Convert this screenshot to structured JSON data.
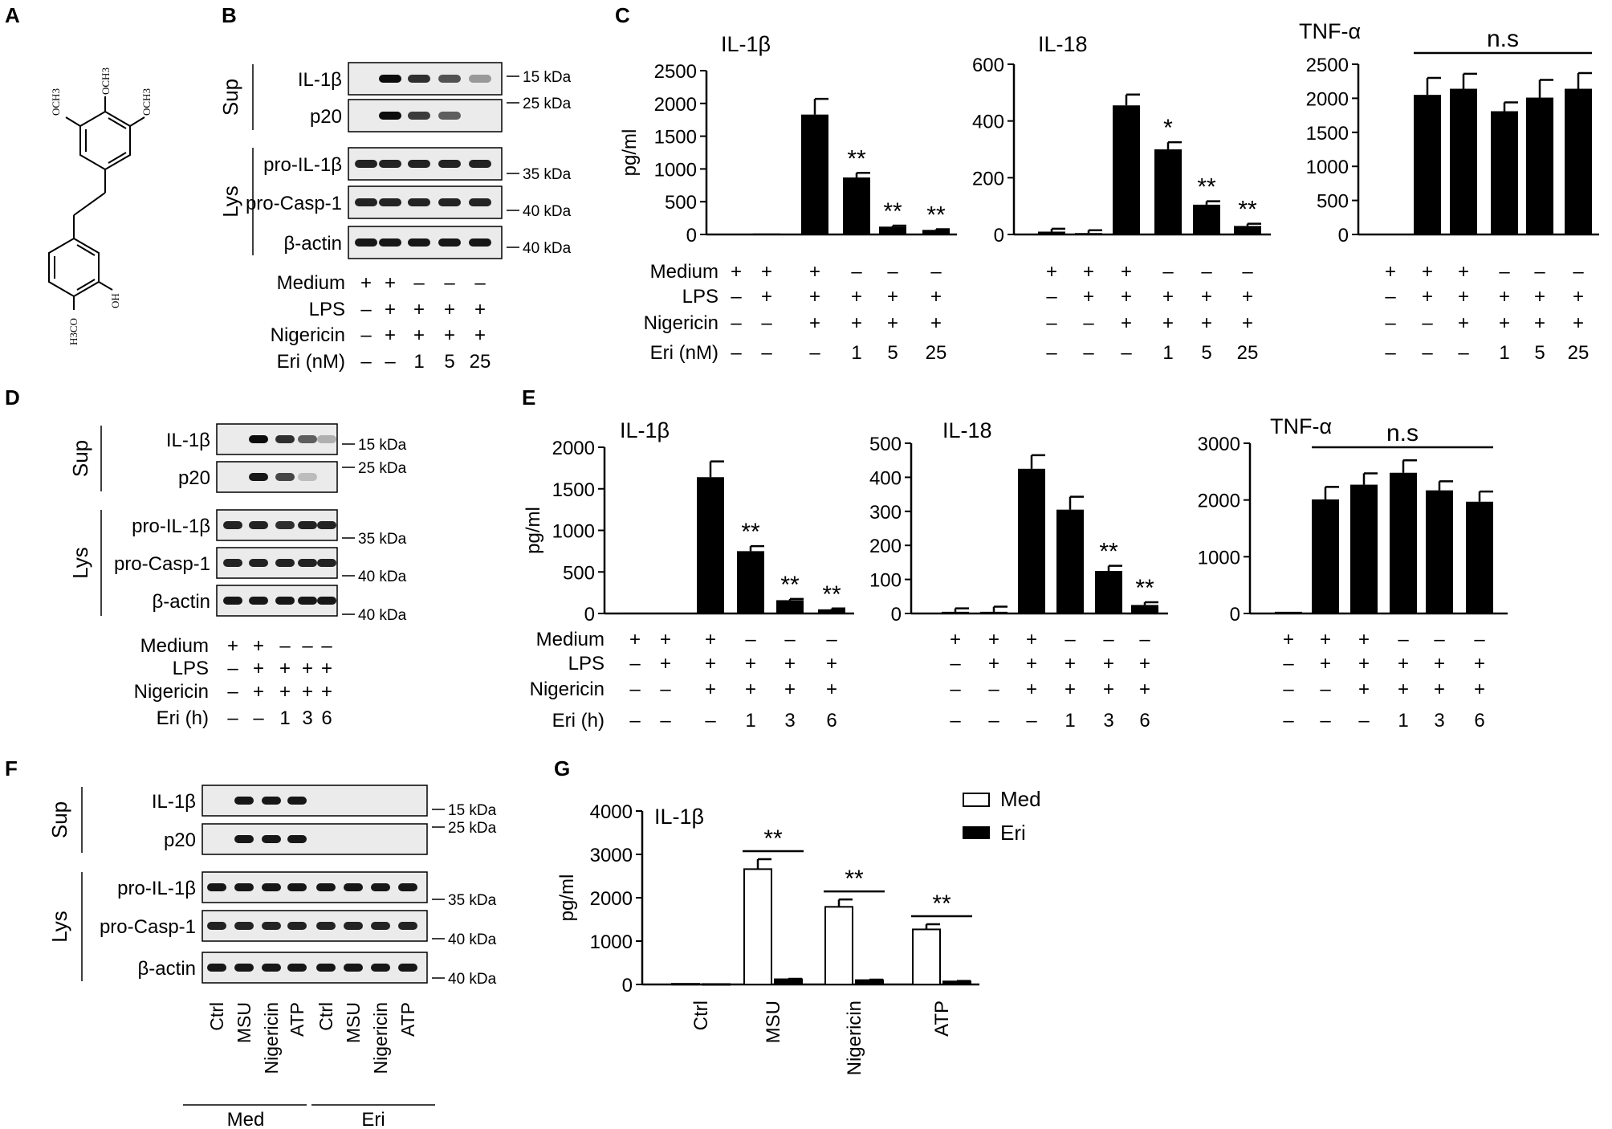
{
  "panel_letters": {
    "A": "A",
    "B": "B",
    "C": "C",
    "D": "D",
    "E": "E",
    "F": "F",
    "G": "G"
  },
  "structure": {
    "groups": [
      "OCH3",
      "OCH3",
      "OCH3",
      "OH",
      "H3CO"
    ]
  },
  "blots": {
    "B": {
      "sections": [
        "Sup",
        "Lys"
      ],
      "rows": [
        "IL-1β",
        "p20",
        "pro-IL-1β",
        "pro-Casp-1",
        "β-actin"
      ],
      "markers": [
        "15 kDa",
        "25 kDa",
        "35 kDa",
        "40 kDa",
        "40 kDa"
      ],
      "conditions": [
        {
          "label": "Medium",
          "values": [
            "+",
            "+",
            "–",
            "–",
            "–"
          ]
        },
        {
          "label": "LPS",
          "values": [
            "–",
            "+",
            "+",
            "+",
            "+"
          ]
        },
        {
          "label": "Nigericin",
          "values": [
            "–",
            "+",
            "+",
            "+",
            "+"
          ]
        },
        {
          "label": "Eri (nM)",
          "values": [
            "–",
            "–",
            "1",
            "5",
            "25"
          ]
        }
      ]
    },
    "D": {
      "sections": [
        "Sup",
        "Lys"
      ],
      "rows": [
        "IL-1β",
        "p20",
        "pro-IL-1β",
        "pro-Casp-1",
        "β-actin"
      ],
      "markers": [
        "15 kDa",
        "25 kDa",
        "35 kDa",
        "40 kDa",
        "40 kDa"
      ],
      "conditions": [
        {
          "label": "Medium",
          "values": [
            "+",
            "+",
            "–",
            "–",
            "–"
          ]
        },
        {
          "label": "LPS",
          "values": [
            "–",
            "+",
            "+",
            "+",
            "+"
          ]
        },
        {
          "label": "Nigericin",
          "values": [
            "–",
            "+",
            "+",
            "+",
            "+"
          ]
        },
        {
          "label": "Eri (h)",
          "values": [
            "–",
            "–",
            "1",
            "3",
            "6"
          ]
        }
      ]
    },
    "F": {
      "sections": [
        "Sup",
        "Lys"
      ],
      "rows": [
        "IL-1β",
        "p20",
        "pro-IL-1β",
        "pro-Casp-1",
        "β-actin"
      ],
      "markers": [
        "15 kDa",
        "25 kDa",
        "35 kDa",
        "40 kDa",
        "40 kDa"
      ],
      "lanes": [
        "Ctrl",
        "MSU",
        "Nigericin",
        "ATP",
        "Ctrl",
        "MSU",
        "Nigericin",
        "ATP"
      ],
      "groups": [
        "Med",
        "Eri"
      ]
    }
  },
  "chart_data": [
    {
      "panel": "C",
      "type": "bar",
      "title": "IL-1β",
      "ylabel": "pg/ml",
      "ylim": [
        0,
        2500
      ],
      "yticks": [
        0,
        500,
        1000,
        1500,
        2000,
        2500
      ],
      "values": [
        10,
        15,
        1830,
        870,
        120,
        70
      ],
      "errors": [
        0,
        0,
        240,
        70,
        15,
        10
      ],
      "stars": [
        "",
        "",
        "",
        "**",
        "**",
        "**"
      ],
      "conditions": [
        {
          "label": "Medium",
          "values": [
            "+",
            "+",
            "+",
            "–",
            "–",
            "–"
          ]
        },
        {
          "label": "LPS",
          "values": [
            "–",
            "+",
            "+",
            "+",
            "+",
            "+"
          ]
        },
        {
          "label": "Nigericin",
          "values": [
            "–",
            "–",
            "+",
            "+",
            "+",
            "+"
          ]
        },
        {
          "label": "Eri (nM)",
          "values": [
            "–",
            "–",
            "–",
            "1",
            "5",
            "25"
          ]
        }
      ]
    },
    {
      "panel": "C",
      "type": "bar",
      "title": "IL-18",
      "ylabel": "",
      "ylim": [
        0,
        600
      ],
      "yticks": [
        0,
        200,
        400,
        600
      ],
      "values": [
        10,
        5,
        455,
        300,
        105,
        30
      ],
      "errors": [
        10,
        10,
        38,
        25,
        12,
        8
      ],
      "stars": [
        "",
        "",
        "",
        "*",
        "**",
        "**"
      ],
      "conditions": [
        {
          "label": "",
          "values": [
            "+",
            "+",
            "+",
            "–",
            "–",
            "–"
          ]
        },
        {
          "label": "",
          "values": [
            "–",
            "+",
            "+",
            "+",
            "+",
            "+"
          ]
        },
        {
          "label": "",
          "values": [
            "–",
            "–",
            "+",
            "+",
            "+",
            "+"
          ]
        },
        {
          "label": "",
          "values": [
            "–",
            "–",
            "–",
            "1",
            "5",
            "25"
          ]
        }
      ]
    },
    {
      "panel": "C",
      "type": "bar",
      "title": "TNF-α",
      "ylabel": "",
      "ylim": [
        0,
        2500
      ],
      "yticks": [
        0,
        500,
        1000,
        1500,
        2000,
        2500
      ],
      "values": [
        10,
        2050,
        2140,
        1810,
        2010,
        2140
      ],
      "errors": [
        0,
        250,
        220,
        130,
        260,
        230
      ],
      "stars": [
        "",
        "",
        "",
        "",
        "",
        ""
      ],
      "bracket": {
        "label": "n.s",
        "from": 1,
        "to": 5
      },
      "conditions": [
        {
          "label": "",
          "values": [
            "+",
            "+",
            "+",
            "–",
            "–",
            "–"
          ]
        },
        {
          "label": "",
          "values": [
            "–",
            "+",
            "+",
            "+",
            "+",
            "+"
          ]
        },
        {
          "label": "",
          "values": [
            "–",
            "–",
            "+",
            "+",
            "+",
            "+"
          ]
        },
        {
          "label": "",
          "values": [
            "–",
            "–",
            "–",
            "1",
            "5",
            "25"
          ]
        }
      ]
    },
    {
      "panel": "E",
      "type": "bar",
      "title": "IL-1β",
      "ylabel": "pg/ml",
      "ylim": [
        0,
        2000
      ],
      "yticks": [
        0,
        500,
        1000,
        1500,
        2000
      ],
      "values": [
        10,
        10,
        1640,
        750,
        160,
        50
      ],
      "errors": [
        0,
        0,
        190,
        60,
        15,
        10
      ],
      "stars": [
        "",
        "",
        "",
        "**",
        "**",
        "**"
      ],
      "conditions": [
        {
          "label": "Medium",
          "values": [
            "+",
            "+",
            "+",
            "–",
            "–",
            "–"
          ]
        },
        {
          "label": "LPS",
          "values": [
            "–",
            "+",
            "+",
            "+",
            "+",
            "+"
          ]
        },
        {
          "label": "Nigericin",
          "values": [
            "–",
            "–",
            "+",
            "+",
            "+",
            "+"
          ]
        },
        {
          "label": "Eri (h)",
          "values": [
            "–",
            "–",
            "–",
            "1",
            "3",
            "6"
          ]
        }
      ]
    },
    {
      "panel": "E",
      "type": "bar",
      "title": "IL-18",
      "ylabel": "",
      "ylim": [
        0,
        500
      ],
      "yticks": [
        0,
        100,
        200,
        300,
        400,
        500
      ],
      "values": [
        5,
        5,
        425,
        305,
        125,
        25
      ],
      "errors": [
        10,
        15,
        40,
        38,
        15,
        8
      ],
      "stars": [
        "",
        "",
        "",
        "",
        "**",
        "**"
      ],
      "conditions": [
        {
          "label": "",
          "values": [
            "+",
            "+",
            "+",
            "–",
            "–",
            "–"
          ]
        },
        {
          "label": "",
          "values": [
            "–",
            "+",
            "+",
            "+",
            "+",
            "+"
          ]
        },
        {
          "label": "",
          "values": [
            "–",
            "–",
            "+",
            "+",
            "+",
            "+"
          ]
        },
        {
          "label": "",
          "values": [
            "–",
            "–",
            "–",
            "1",
            "3",
            "6"
          ]
        }
      ]
    },
    {
      "panel": "E",
      "type": "bar",
      "title": "TNF-α",
      "ylabel": "",
      "ylim": [
        0,
        3000
      ],
      "yticks": [
        0,
        1000,
        2000,
        3000
      ],
      "values": [
        30,
        2010,
        2270,
        2480,
        2170,
        1970
      ],
      "errors": [
        0,
        220,
        200,
        220,
        160,
        180
      ],
      "stars": [
        "",
        "",
        "",
        "",
        "",
        ""
      ],
      "bracket": {
        "label": "n.s",
        "from": 1,
        "to": 5
      },
      "conditions": [
        {
          "label": "",
          "values": [
            "+",
            "+",
            "+",
            "–",
            "–",
            "–"
          ]
        },
        {
          "label": "",
          "values": [
            "–",
            "+",
            "+",
            "+",
            "+",
            "+"
          ]
        },
        {
          "label": "",
          "values": [
            "–",
            "–",
            "+",
            "+",
            "+",
            "+"
          ]
        },
        {
          "label": "",
          "values": [
            "–",
            "–",
            "–",
            "1",
            "3",
            "6"
          ]
        }
      ]
    },
    {
      "panel": "G",
      "type": "bar",
      "title": "IL-1β",
      "ylabel": "pg/ml",
      "ylim": [
        0,
        4000
      ],
      "yticks": [
        0,
        1000,
        2000,
        3000,
        4000
      ],
      "categories": [
        "Ctrl",
        "MSU",
        "Nigericin",
        "ATP"
      ],
      "series": [
        {
          "name": "Med",
          "values": [
            15,
            2660,
            1790,
            1270
          ],
          "errors": [
            0,
            230,
            170,
            120
          ],
          "fill": "#ffffff"
        },
        {
          "name": "Eri",
          "values": [
            10,
            120,
            100,
            70
          ],
          "errors": [
            0,
            10,
            10,
            10
          ],
          "fill": "#000000"
        }
      ],
      "stars": [
        "",
        "**",
        "**",
        "**"
      ]
    }
  ]
}
